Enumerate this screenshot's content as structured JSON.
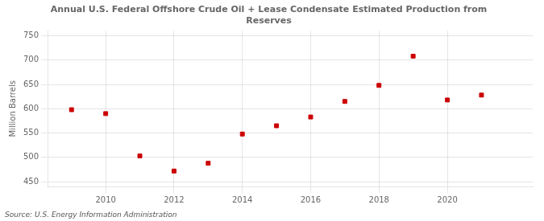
{
  "chart_data": {
    "type": "scatter",
    "title": "Annual U.S. Federal Offshore Crude Oil + Lease Condensate Estimated Production from\nReserves",
    "ylabel": "Million Barrels",
    "annotations": [
      "Source: U.S. Energy Information Administration"
    ],
    "x": [
      2009,
      2010,
      2011,
      2012,
      2013,
      2014,
      2015,
      2016,
      2017,
      2018,
      2019,
      2020,
      2021
    ],
    "values": [
      598,
      590,
      503,
      472,
      488,
      548,
      565,
      583,
      615,
      648,
      708,
      618,
      628
    ],
    "color": "#cc0000",
    "marker": "square",
    "xlim": [
      2008.3,
      2022.5
    ],
    "xticks": [
      2010,
      2012,
      2014,
      2016,
      2018,
      2020
    ],
    "ylim": [
      440,
      760
    ],
    "yticks": [
      450,
      500,
      550,
      600,
      650,
      700,
      750
    ],
    "grid": true
  }
}
